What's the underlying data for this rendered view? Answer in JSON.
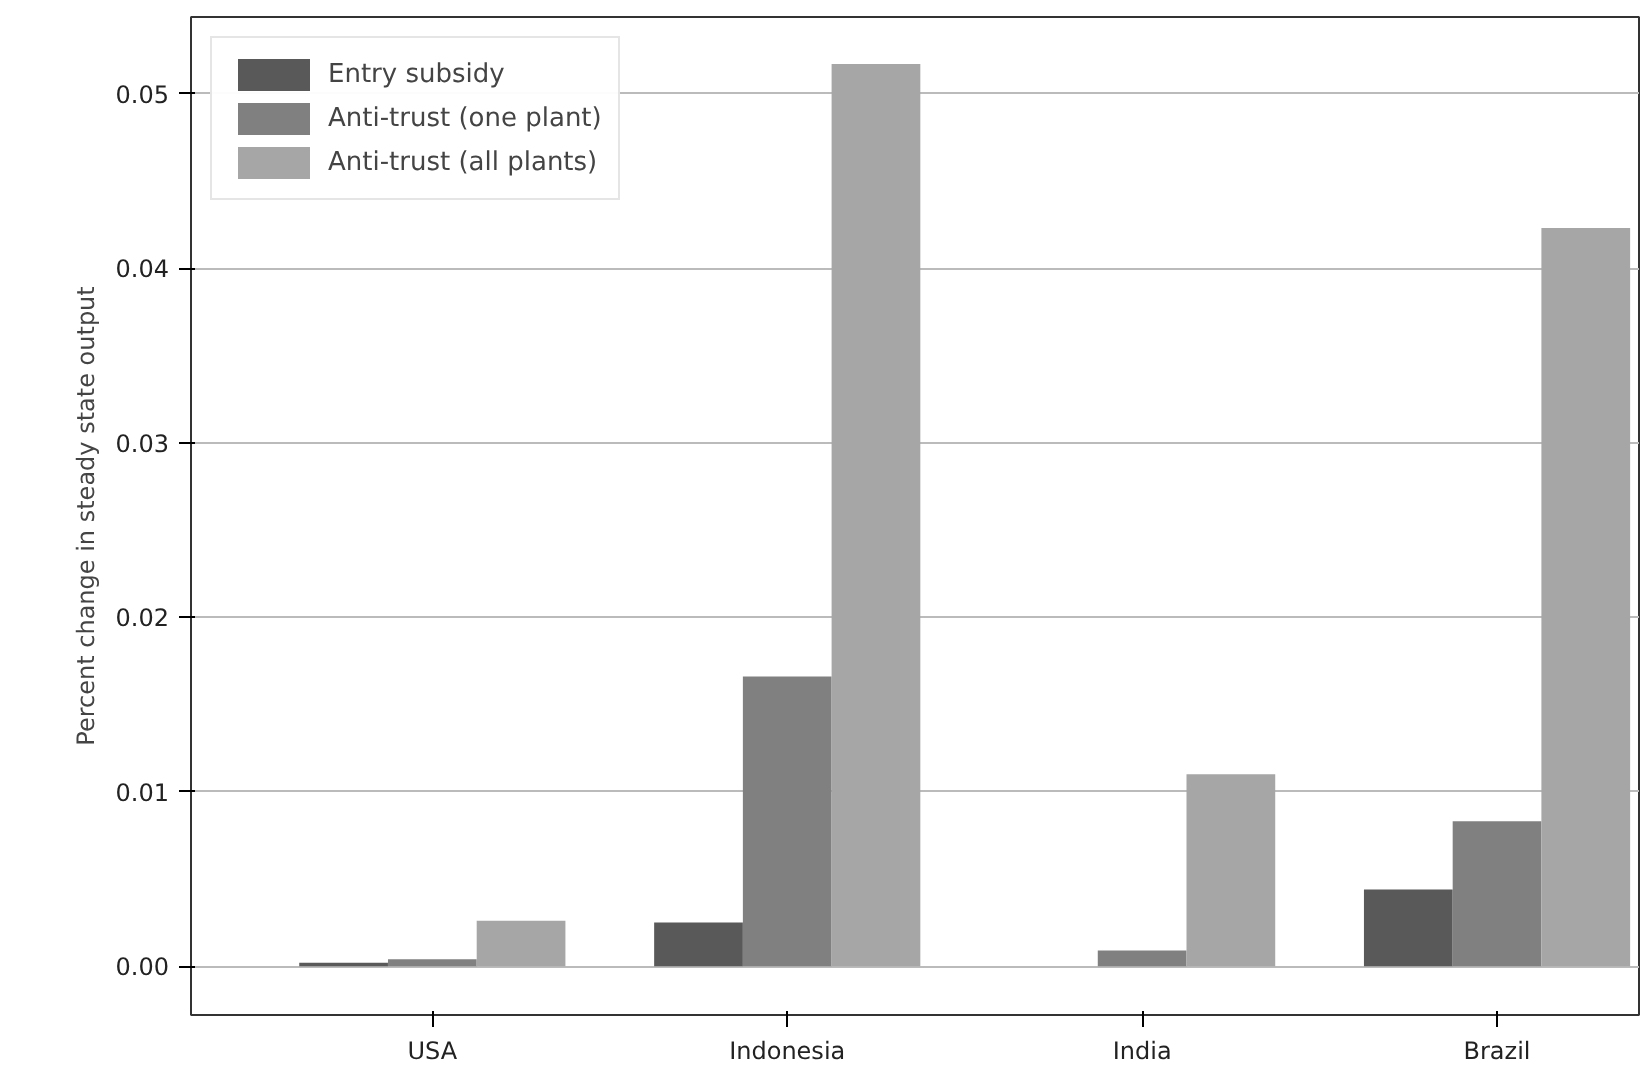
{
  "chart_data": {
    "type": "bar",
    "ylabel": "Percent change in steady state output",
    "categories": [
      "USA",
      "Indonesia",
      "India",
      "Brazil"
    ],
    "series": [
      {
        "name": "Entry subsidy",
        "color": "#595959",
        "values": [
          0.0002,
          0.0025,
          0,
          0.0044
        ]
      },
      {
        "name": "Anti-trust (one plant)",
        "color": "#808080",
        "values": [
          0.0004,
          0.0166,
          0.0009,
          0.0083
        ]
      },
      {
        "name": "Anti-trust (all plants)",
        "color": "#a6a6a6",
        "values": [
          0.0026,
          0.0517,
          0.011,
          0.0423
        ]
      }
    ],
    "ylim": [
      -0.0028,
      0.0544
    ],
    "yticks": [
      {
        "value": 0,
        "label": "0.00"
      },
      {
        "value": 0.01,
        "label": "0.01"
      },
      {
        "value": 0.02,
        "label": "0.02"
      },
      {
        "value": 0.03,
        "label": "0.03"
      },
      {
        "value": 0.04,
        "label": "0.04"
      },
      {
        "value": 0.05,
        "label": "0.05"
      }
    ],
    "grid": "y",
    "legend": "top left"
  }
}
